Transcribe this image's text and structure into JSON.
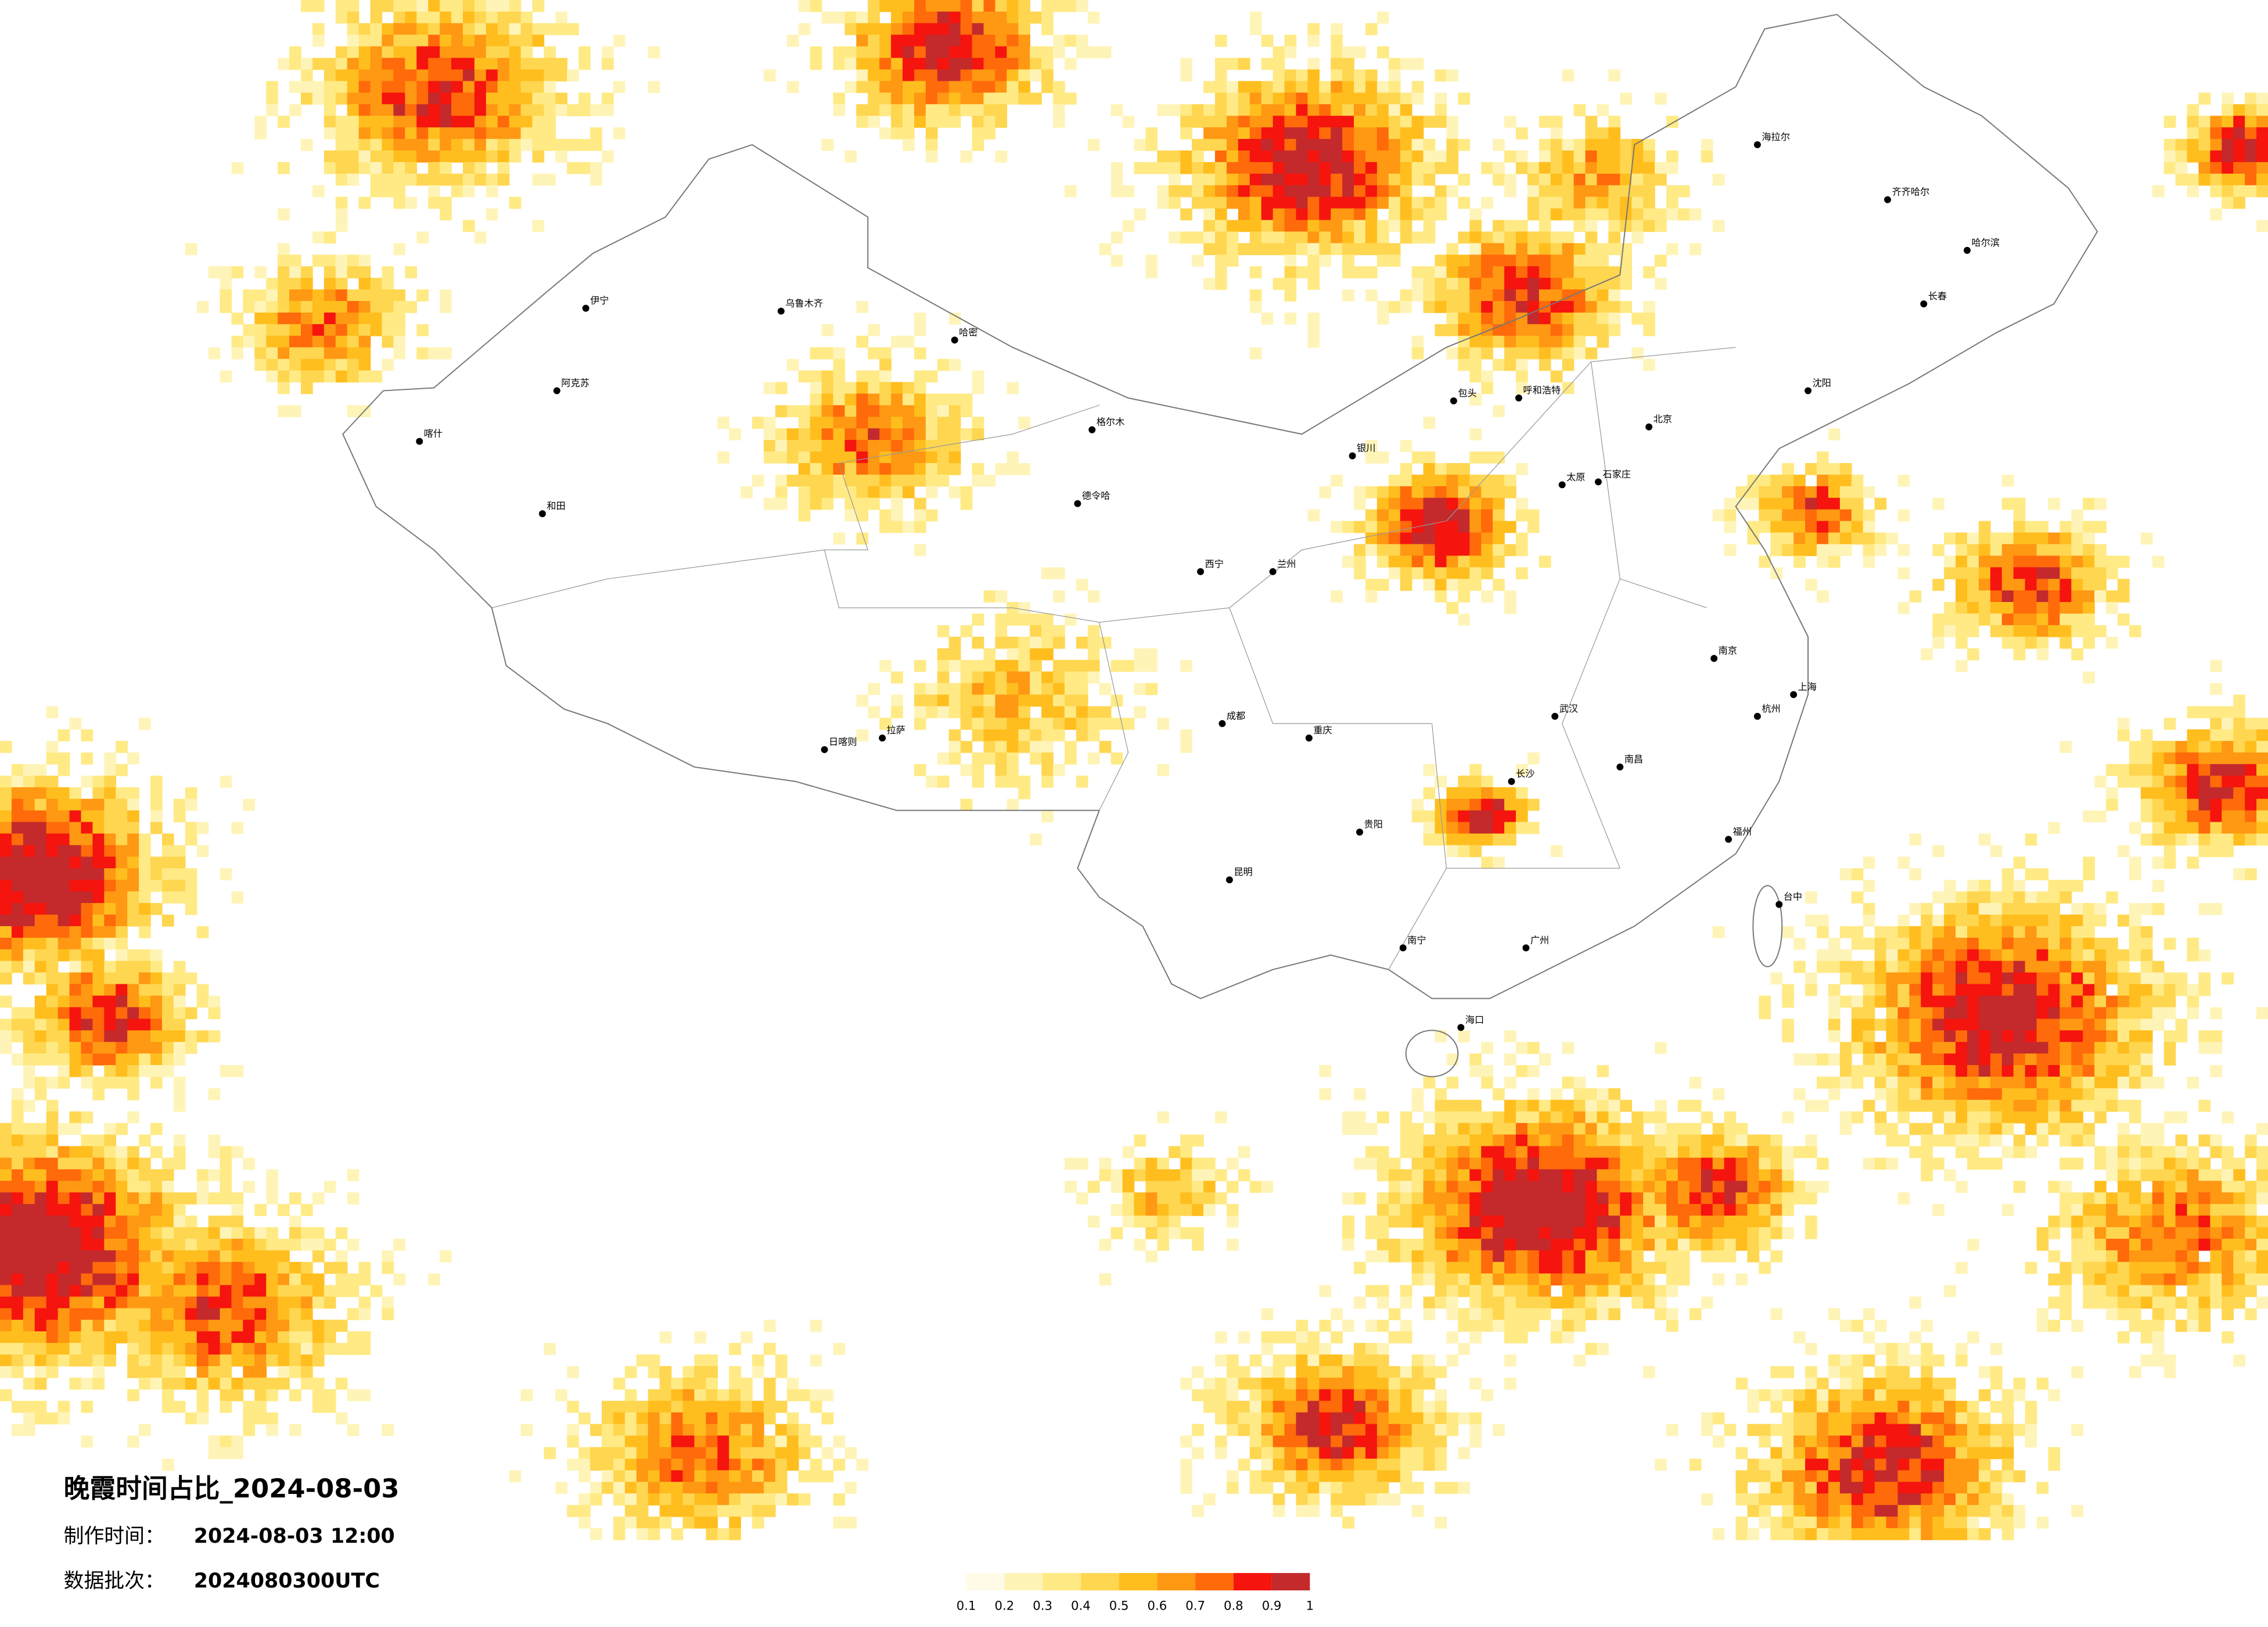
{
  "title": "晚霞时间占比_2024-08-03",
  "info": [
    {
      "label": "制作时间：",
      "value": "2024-08-03 12:00"
    },
    {
      "label": "数据批次：",
      "value": "2024080300UTC"
    }
  ],
  "legend": {
    "ticks": [
      0.1,
      0.2,
      0.3,
      0.4,
      0.5,
      0.6,
      0.7,
      0.8,
      0.9,
      1
    ],
    "colors": [
      "#fffbe6",
      "#fff4b8",
      "#ffea85",
      "#ffd650",
      "#ffbe1e",
      "#ff9812",
      "#ff6a0a",
      "#f5140e",
      "#c42a2c"
    ]
  },
  "cities": [
    "海拉尔",
    "齐齐哈尔",
    "哈尔滨",
    "长春",
    "沈阳",
    "呼和浩特",
    "包头",
    "北京",
    "石家庄",
    "太原",
    "银川",
    "兰州",
    "西宁",
    "格尔木",
    "德令哈",
    "哈密",
    "乌鲁木齐",
    "伊宁",
    "阿克苏",
    "喀什",
    "和田",
    "拉萨",
    "日喀则",
    "成都",
    "重庆",
    "昆明",
    "贵阳",
    "南宁",
    "海口",
    "广州",
    "长沙",
    "武汉",
    "南昌",
    "福州",
    "杭州",
    "南京",
    "上海",
    "台中"
  ]
}
